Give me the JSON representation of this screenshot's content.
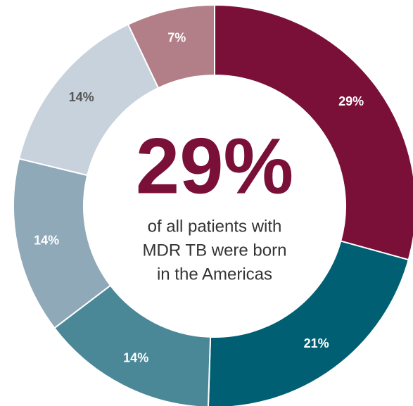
{
  "chart_data": {
    "type": "donut",
    "values": [
      29,
      21,
      14,
      14,
      14,
      7
    ],
    "value_labels": [
      "29%",
      "21%",
      "14%",
      "14%",
      "14%",
      "7%"
    ],
    "colors": [
      "#7a1038",
      "#005f73",
      "#4a8898",
      "#8fa9b9",
      "#c7d2dc",
      "#b27e88"
    ],
    "label_colors": [
      "#ffffff",
      "#ffffff",
      "#ffffff",
      "#ffffff",
      "#555555",
      "#ffffff"
    ],
    "center_label": "29%",
    "center_text": [
      "of all patients with",
      "MDR TB were born",
      "in the Americas"
    ]
  }
}
